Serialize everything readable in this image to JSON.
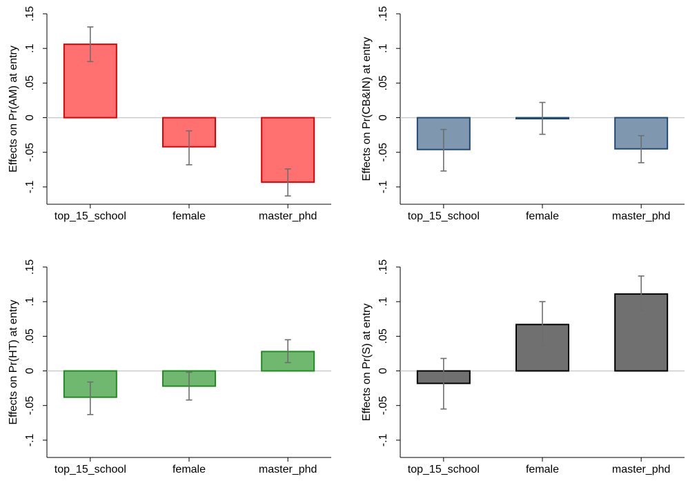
{
  "chart_data": [
    {
      "type": "bar",
      "ylabel": "Effects on Pr(AM) at entry",
      "categories": [
        "top_15_school",
        "female",
        "master_phd"
      ],
      "values": [
        0.106,
        -0.042,
        -0.093
      ],
      "ci": [
        [
          0.081,
          0.131
        ],
        [
          -0.068,
          -0.019
        ],
        [
          -0.113,
          -0.074
        ]
      ],
      "ylim": [
        -0.125,
        0.15
      ],
      "yticks": [
        -0.1,
        -0.05,
        0,
        0.05,
        0.1,
        0.15
      ],
      "yticklabels": [
        "-.1",
        "-.05",
        "0",
        ".05",
        ".1",
        ".15"
      ],
      "bar_fill": "#FF7070",
      "bar_stroke": "#E00000"
    },
    {
      "type": "bar",
      "ylabel": "Effects on Pr(CB&IN) at entry",
      "categories": [
        "top_15_school",
        "female",
        "master_phd"
      ],
      "values": [
        -0.046,
        -0.001,
        -0.045
      ],
      "ci": [
        [
          -0.077,
          -0.017
        ],
        [
          -0.024,
          0.022
        ],
        [
          -0.065,
          -0.026
        ]
      ],
      "ylim": [
        -0.125,
        0.15
      ],
      "yticks": [
        -0.1,
        -0.05,
        0,
        0.05,
        0.1,
        0.15
      ],
      "yticklabels": [
        "-.1",
        "-.05",
        "0",
        ".05",
        ".1",
        ".15"
      ],
      "bar_fill": "#7F98B0",
      "bar_stroke": "#1F4A78"
    },
    {
      "type": "bar",
      "ylabel": "Effects on Pr(HT) at entry",
      "categories": [
        "top_15_school",
        "female",
        "master_phd"
      ],
      "values": [
        -0.038,
        -0.022,
        0.028
      ],
      "ci": [
        [
          -0.063,
          -0.016
        ],
        [
          -0.042,
          -0.002
        ],
        [
          0.012,
          0.045
        ]
      ],
      "ylim": [
        -0.125,
        0.15
      ],
      "yticks": [
        -0.1,
        -0.05,
        0,
        0.05,
        0.1,
        0.15
      ],
      "yticklabels": [
        "-.1",
        "-.05",
        "0",
        ".05",
        ".1",
        ".15"
      ],
      "bar_fill": "#70B870",
      "bar_stroke": "#1E8C1E"
    },
    {
      "type": "bar",
      "ylabel": "Effects on Pr(S) at entry",
      "categories": [
        "top_15_school",
        "female",
        "master_phd"
      ],
      "values": [
        -0.018,
        0.067,
        0.111
      ],
      "ci": [
        [
          -0.055,
          0.018
        ],
        [
          0.036,
          0.1
        ],
        [
          0.086,
          0.137
        ]
      ],
      "ylim": [
        -0.125,
        0.15
      ],
      "yticks": [
        -0.1,
        -0.05,
        0,
        0.05,
        0.1,
        0.15
      ],
      "yticklabels": [
        "-.1",
        "-.05",
        "0",
        ".05",
        ".1",
        ".15"
      ],
      "bar_fill": "#707070",
      "bar_stroke": "#000000"
    }
  ]
}
